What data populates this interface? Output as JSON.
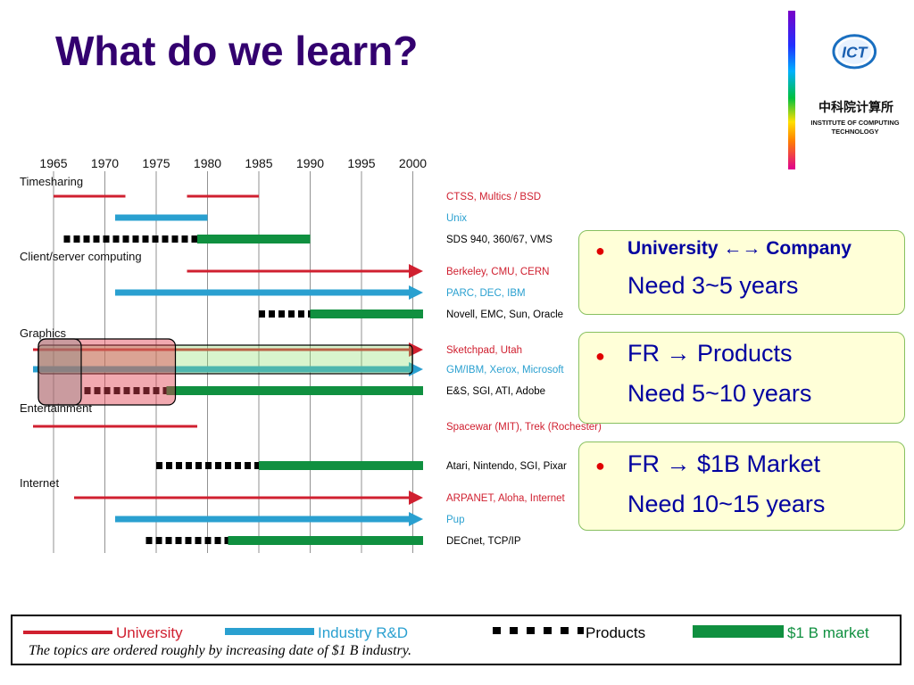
{
  "slide": {
    "title": "What do we learn?"
  },
  "logo": {
    "mark_text": "ICT",
    "chinese_name": "中科院计算所",
    "english_line1": "INSTITUTE OF COMPUTING",
    "english_line2": "TECHNOLOGY",
    "colors": {
      "ring": "#1a6fc0",
      "mark": "#1a5fb0"
    }
  },
  "timeline": {
    "years": [
      "1965",
      "1970",
      "1975",
      "1980",
      "1985",
      "1990",
      "1995",
      "2000"
    ],
    "categories": [
      {
        "name": "Timesharing",
        "rows": [
          {
            "label": "CTSS, Multics / BSD",
            "color": "#d02030",
            "segments": [
              {
                "type": "university",
                "start": 1965,
                "end": 1972
              },
              {
                "type": "university",
                "start": 1978,
                "end": 1985
              }
            ]
          },
          {
            "label": "Unix",
            "color": "#2aa0d0",
            "segments": [
              {
                "type": "industry",
                "start": 1971,
                "end": 1980
              }
            ]
          },
          {
            "label": "SDS 940, 360/67, VMS",
            "color": "#000000",
            "segments": [
              {
                "type": "products",
                "start": 1966,
                "end": 1979
              },
              {
                "type": "market",
                "start": 1979,
                "end": 1990
              }
            ]
          }
        ]
      },
      {
        "name": "Client/server computing",
        "rows": [
          {
            "label": "Berkeley, CMU, CERN",
            "color": "#d02030",
            "segments": [
              {
                "type": "university",
                "start": 1978,
                "end": 2001,
                "arrow": true
              }
            ]
          },
          {
            "label": "PARC, DEC, IBM",
            "color": "#2aa0d0",
            "segments": [
              {
                "type": "industry",
                "start": 1971,
                "end": 2001,
                "arrow": true
              }
            ]
          },
          {
            "label": "Novell, EMC, Sun, Oracle",
            "color": "#000000",
            "segments": [
              {
                "type": "products",
                "start": 1985,
                "end": 1990
              },
              {
                "type": "market",
                "start": 1990,
                "end": 2001
              }
            ]
          }
        ]
      },
      {
        "name": "Graphics",
        "rows": [
          {
            "label": "Sketchpad, Utah",
            "color": "#d02030",
            "segments": [
              {
                "type": "university",
                "start": 1963,
                "end": 2001,
                "arrow": true
              }
            ]
          },
          {
            "label": "GM/IBM, Xerox, Microsoft",
            "color": "#2aa0d0",
            "segments": [
              {
                "type": "industry",
                "start": 1963,
                "end": 2001,
                "arrow": true
              }
            ]
          },
          {
            "label": "E&S, SGI, ATI, Adobe",
            "color": "#000000",
            "segments": [
              {
                "type": "products",
                "start": 1968,
                "end": 1976
              },
              {
                "type": "market",
                "start": 1976,
                "end": 2001
              }
            ]
          }
        ]
      },
      {
        "name": "Entertainment",
        "rows": [
          {
            "label": "Spacewar (MIT), Trek (Rochester)",
            "color": "#d02030",
            "segments": [
              {
                "type": "university",
                "start": 1963,
                "end": 1979
              }
            ]
          },
          {
            "label": "Atari, Nintendo, SGI, Pixar",
            "color": "#000000",
            "segments": [
              {
                "type": "products",
                "start": 1975,
                "end": 1985
              },
              {
                "type": "market",
                "start": 1985,
                "end": 2001
              }
            ]
          }
        ]
      },
      {
        "name": "Internet",
        "rows": [
          {
            "label": "ARPANET, Aloha, Internet",
            "color": "#d02030",
            "segments": [
              {
                "type": "university",
                "start": 1967,
                "end": 2001,
                "arrow": true
              }
            ]
          },
          {
            "label": "Pup",
            "color": "#2aa0d0",
            "segments": [
              {
                "type": "industry",
                "start": 1971,
                "end": 2001,
                "arrow": true
              }
            ]
          },
          {
            "label": "DECnet, TCP/IP",
            "color": "#000000",
            "segments": [
              {
                "type": "products",
                "start": 1974,
                "end": 1982
              },
              {
                "type": "market",
                "start": 1982,
                "end": 2001
              }
            ]
          }
        ]
      }
    ],
    "highlight": {
      "start": 1963,
      "end": 1997
    },
    "highlight_small": {
      "start": 1963,
      "end": 1976
    }
  },
  "callouts": [
    {
      "line1": "University ←→ Company",
      "line2": "Need 3~5 years"
    },
    {
      "line1": "FR  →  Products",
      "line2": "Need 5~10 years"
    },
    {
      "line1": "FR → $1B Market",
      "line2": "Need 10~15 years"
    }
  ],
  "legend": {
    "university": "University",
    "industry": "Industry R&D",
    "products": "Products",
    "market": "$1 B market",
    "note": "The topics are ordered roughly by increasing date of $1 B industry."
  },
  "colors": {
    "university": "#d02030",
    "industry": "#2aa0d0",
    "products": "#000000",
    "market": "#109040",
    "title": "#33006f",
    "callout_text": "#0000a0"
  }
}
